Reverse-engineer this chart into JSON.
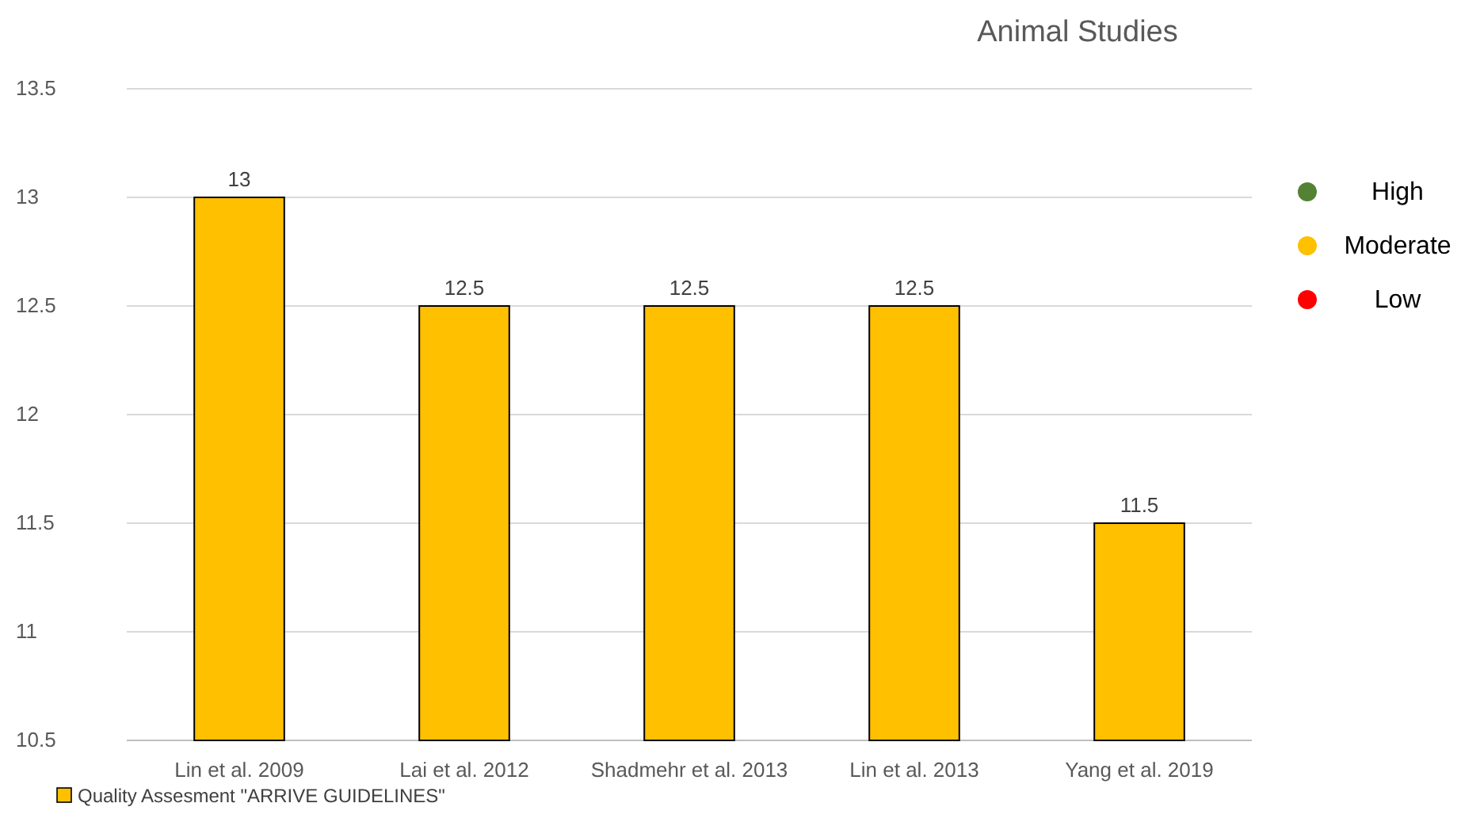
{
  "chart_data": {
    "type": "bar",
    "title": "Animal Studies",
    "categories": [
      "Lin et al. 2009",
      "Lai et al. 2012",
      "Shadmehr et al. 2013",
      "Lin et al. 2013",
      "Yang et al. 2019"
    ],
    "series": [
      {
        "name": "Quality Assesment \"ARRIVE GUIDELINES\"",
        "color": "#ffc000",
        "values": [
          13,
          12.5,
          12.5,
          12.5,
          11.5
        ]
      }
    ],
    "annotations": [
      "High",
      "Moderate",
      "Low"
    ],
    "ylim": [
      10.5,
      13.5
    ],
    "yticks": [
      10.5,
      11,
      11.5,
      12,
      12.5,
      13,
      13.5
    ],
    "grid": "y",
    "data_labels": true,
    "legend": "bottom left"
  }
}
